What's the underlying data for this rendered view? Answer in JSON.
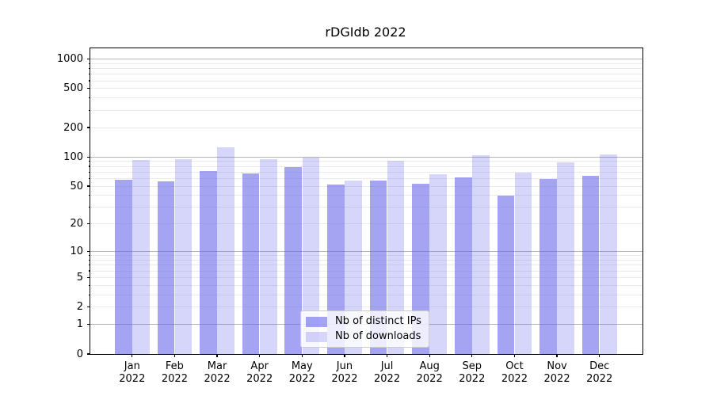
{
  "title": "rDGIdb 2022",
  "chart_data": {
    "type": "bar",
    "title": "rDGIdb 2022",
    "scale": "log1p",
    "grid": true,
    "categories": [
      "Jan",
      "Feb",
      "Mar",
      "Apr",
      "May",
      "Jun",
      "Jul",
      "Aug",
      "Sep",
      "Oct",
      "Nov",
      "Dec"
    ],
    "year_label": "2022",
    "series": [
      {
        "name": "Nb of distinct IPs",
        "color": "rgba(98,98,235,0.58)",
        "values": [
          58,
          56,
          72,
          68,
          79,
          52,
          57,
          53,
          62,
          40,
          59,
          64
        ]
      },
      {
        "name": "Nb of downloads",
        "color": "rgba(98,98,235,0.26)",
        "values": [
          93,
          95,
          126,
          94,
          98,
          57,
          92,
          66,
          104,
          69,
          88,
          106
        ]
      }
    ],
    "y_ticks": [
      0,
      1,
      2,
      5,
      10,
      20,
      50,
      100,
      200,
      500,
      1000
    ],
    "y_major_gridlines": [
      1,
      10,
      100,
      1000
    ],
    "ylim": [
      0,
      1285
    ],
    "legend_position": "lower center",
    "xlabel": "",
    "ylabel": ""
  },
  "colors": {
    "background": "#ffffff",
    "spine": "#000000",
    "major_grid": "#b4b4b4",
    "minor_grid": "#ebebeb",
    "bar_distinct_ips": "rgba(98,98,235,0.58)",
    "bar_downloads": "rgba(98,98,235,0.26)"
  }
}
